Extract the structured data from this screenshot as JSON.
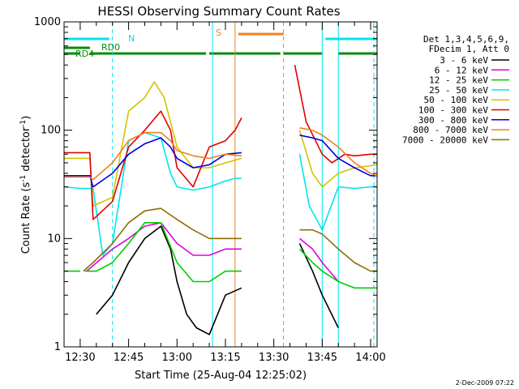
{
  "chart_data": {
    "type": "line",
    "title": "HESSI Observing Summary Count Rates",
    "xlabel": "Start Time (25-Aug-04 12:25:02)",
    "ylabel_prefix": "Count Rate (s",
    "ylabel_sup1": "-1",
    "ylabel_mid": " detector",
    "ylabel_sup2": "-1",
    "ylabel_suffix": ")",
    "yscale": "log",
    "ylim": [
      1,
      1000
    ],
    "xlim": [
      "12:25",
      "14:02"
    ],
    "x_tick_labels": [
      "12:30",
      "12:45",
      "13:00",
      "13:15",
      "13:30",
      "13:45",
      "14:00"
    ],
    "y_tick_labels": [
      "1",
      "10",
      "100",
      "1000"
    ],
    "legend_header": [
      "Det 1,3,4,5,6,9,",
      "FDecim 1, Att 0"
    ],
    "legend_position": "right",
    "timestamp": "2-Dec-2009 07:22",
    "annotations": {
      "N": "N",
      "RD0": "RD0",
      "RD4": "RD4",
      "S": "S"
    },
    "state_bars": [
      {
        "label": "N",
        "color": "#00e5ee",
        "segments": [
          [
            "12:25",
            "12:39"
          ],
          [
            "13:46",
            "14:02"
          ]
        ]
      },
      {
        "label": "RD0",
        "color": "#0a8a0a",
        "segments": [
          [
            "12:25",
            "12:33"
          ]
        ]
      },
      {
        "label": "RD4",
        "color": "#0a8a0a",
        "segments": [
          [
            "12:25",
            "12:30"
          ],
          [
            "12:33",
            "13:09"
          ],
          [
            "13:10",
            "13:32"
          ],
          [
            "13:33",
            "13:45"
          ],
          [
            "13:50",
            "14:02"
          ]
        ]
      },
      {
        "label": "S",
        "color": "#f08020",
        "segments": [
          [
            "13:19",
            "13:33"
          ]
        ]
      }
    ],
    "vertical_markers": [
      {
        "x": "12:40",
        "color": "#00e5ee",
        "dashed": true
      },
      {
        "x": "13:11",
        "color": "#00e5ee",
        "dashed": false
      },
      {
        "x": "13:18",
        "color": "#f08020",
        "dashed": false
      },
      {
        "x": "13:33",
        "color": "#f08020",
        "dashed": true
      },
      {
        "x": "13:45",
        "color": "#00e5ee",
        "dashed": false
      },
      {
        "x": "13:50",
        "color": "#00e5ee",
        "dashed": false
      },
      {
        "x": "14:01",
        "color": "#00e5ee",
        "dashed": true
      }
    ],
    "series": [
      {
        "name": "3 - 6 keV",
        "color": "#000000",
        "points": [
          [
            "12:25",
            null
          ],
          [
            "12:33",
            null
          ],
          [
            "12:35",
            2
          ],
          [
            "12:40",
            3
          ],
          [
            "12:45",
            6
          ],
          [
            "12:50",
            10
          ],
          [
            "12:55",
            13
          ],
          [
            "12:58",
            8
          ],
          [
            "13:00",
            4
          ],
          [
            "13:03",
            2
          ],
          [
            "13:06",
            1.5
          ],
          [
            "13:10",
            1.3
          ],
          [
            "13:15",
            3
          ],
          [
            "13:20",
            3.5
          ],
          [
            "13:20.5",
            null
          ],
          [
            "13:37",
            null
          ],
          [
            "13:38",
            9
          ],
          [
            "13:42",
            5
          ],
          [
            "13:45",
            3
          ],
          [
            "13:50",
            1.5
          ],
          [
            "13:51",
            null
          ]
        ]
      },
      {
        "name": "6 - 12 keV",
        "color": "#e000e0",
        "points": [
          [
            "12:25",
            null
          ],
          [
            "12:31",
            null
          ],
          [
            "12:32",
            5
          ],
          [
            "12:40",
            8
          ],
          [
            "12:45",
            10
          ],
          [
            "12:50",
            13
          ],
          [
            "12:55",
            14
          ],
          [
            "13:00",
            9
          ],
          [
            "13:05",
            7
          ],
          [
            "13:10",
            7
          ],
          [
            "13:15",
            8
          ],
          [
            "13:20",
            8
          ],
          [
            "13:20.5",
            null
          ],
          [
            "13:37",
            null
          ],
          [
            "13:38",
            10
          ],
          [
            "13:42",
            8
          ],
          [
            "13:45",
            6
          ],
          [
            "13:50",
            4
          ],
          [
            "13:52",
            null
          ]
        ]
      },
      {
        "name": "12 - 25 keV",
        "color": "#00cc00",
        "points": [
          [
            "12:25",
            5
          ],
          [
            "12:30",
            5
          ],
          [
            "12:31",
            null
          ],
          [
            "12:31.5",
            5
          ],
          [
            "12:35",
            5
          ],
          [
            "12:40",
            6
          ],
          [
            "12:45",
            9
          ],
          [
            "12:50",
            14
          ],
          [
            "12:55",
            14
          ],
          [
            "13:00",
            6
          ],
          [
            "13:05",
            4
          ],
          [
            "13:10",
            4
          ],
          [
            "13:15",
            5
          ],
          [
            "13:20",
            5
          ],
          [
            "13:20.5",
            null
          ],
          [
            "13:37",
            null
          ],
          [
            "13:38",
            8
          ],
          [
            "13:42",
            6
          ],
          [
            "13:45",
            5
          ],
          [
            "13:50",
            4
          ],
          [
            "13:55",
            3.5
          ],
          [
            "14:02",
            3.5
          ]
        ]
      },
      {
        "name": "25 - 50 keV",
        "color": "#00e5ee",
        "points": [
          [
            "12:25",
            30
          ],
          [
            "12:30",
            29
          ],
          [
            "12:34",
            29
          ],
          [
            "12:37",
            7
          ],
          [
            "12:40",
            9
          ],
          [
            "12:45",
            80
          ],
          [
            "12:50",
            95
          ],
          [
            "12:55",
            85
          ],
          [
            "12:58",
            40
          ],
          [
            "13:00",
            30
          ],
          [
            "13:05",
            28
          ],
          [
            "13:10",
            30
          ],
          [
            "13:15",
            34
          ],
          [
            "13:18",
            36
          ],
          [
            "13:20",
            36
          ],
          [
            "13:20.5",
            null
          ],
          [
            "13:37",
            null
          ],
          [
            "13:38",
            60
          ],
          [
            "13:41",
            20
          ],
          [
            "13:45",
            12
          ],
          [
            "13:50",
            30
          ],
          [
            "13:55",
            29
          ],
          [
            "14:00",
            30
          ],
          [
            "14:02",
            30
          ]
        ]
      },
      {
        "name": "50 - 100 keV",
        "color": "#d4c200",
        "points": [
          [
            "12:25",
            55
          ],
          [
            "12:33",
            55
          ],
          [
            "12:34",
            20
          ],
          [
            "12:40",
            24
          ],
          [
            "12:45",
            150
          ],
          [
            "12:50",
            200
          ],
          [
            "12:53",
            280
          ],
          [
            "12:56",
            200
          ],
          [
            "13:00",
            70
          ],
          [
            "13:05",
            45
          ],
          [
            "13:10",
            45
          ],
          [
            "13:15",
            50
          ],
          [
            "13:20",
            55
          ],
          [
            "13:20.5",
            null
          ],
          [
            "13:37",
            null
          ],
          [
            "13:38",
            100
          ],
          [
            "13:42",
            40
          ],
          [
            "13:45",
            30
          ],
          [
            "13:50",
            40
          ],
          [
            "13:55",
            45
          ],
          [
            "14:00",
            47
          ],
          [
            "14:02",
            48
          ]
        ]
      },
      {
        "name": "100 - 300 keV",
        "color": "#e00000",
        "points": [
          [
            "12:25",
            62
          ],
          [
            "12:33",
            62
          ],
          [
            "12:34",
            15
          ],
          [
            "12:40",
            22
          ],
          [
            "12:45",
            70
          ],
          [
            "12:50",
            100
          ],
          [
            "12:55",
            150
          ],
          [
            "12:58",
            100
          ],
          [
            "13:00",
            45
          ],
          [
            "13:05",
            30
          ],
          [
            "13:10",
            70
          ],
          [
            "13:15",
            80
          ],
          [
            "13:18",
            100
          ],
          [
            "13:20",
            130
          ],
          [
            "13:20.5",
            null
          ],
          [
            "13:36",
            null
          ],
          [
            "13:36.5",
            400
          ],
          [
            "13:40",
            120
          ],
          [
            "13:45",
            60
          ],
          [
            "13:48",
            50
          ],
          [
            "13:52",
            60
          ],
          [
            "13:55",
            58
          ],
          [
            "14:00",
            60
          ],
          [
            "14:02",
            60
          ]
        ]
      },
      {
        "name": "300 - 800 keV",
        "color": "#0000e0",
        "points": [
          [
            "12:25",
            38
          ],
          [
            "12:33",
            38
          ],
          [
            "12:34",
            30
          ],
          [
            "12:40",
            40
          ],
          [
            "12:45",
            60
          ],
          [
            "12:50",
            75
          ],
          [
            "12:55",
            85
          ],
          [
            "12:58",
            70
          ],
          [
            "13:00",
            55
          ],
          [
            "13:05",
            45
          ],
          [
            "13:10",
            48
          ],
          [
            "13:15",
            60
          ],
          [
            "13:20",
            62
          ],
          [
            "13:20.5",
            null
          ],
          [
            "13:37",
            null
          ],
          [
            "13:38",
            90
          ],
          [
            "13:42",
            85
          ],
          [
            "13:45",
            80
          ],
          [
            "13:50",
            55
          ],
          [
            "13:55",
            45
          ],
          [
            "14:00",
            38
          ],
          [
            "14:02",
            38
          ]
        ]
      },
      {
        "name": "800 - 7000 keV",
        "color": "#f08020",
        "points": [
          [
            "12:25",
            37
          ],
          [
            "12:33",
            37
          ],
          [
            "12:34",
            35
          ],
          [
            "12:40",
            50
          ],
          [
            "12:45",
            80
          ],
          [
            "12:50",
            95
          ],
          [
            "12:55",
            95
          ],
          [
            "12:58",
            80
          ],
          [
            "13:00",
            65
          ],
          [
            "13:05",
            58
          ],
          [
            "13:10",
            55
          ],
          [
            "13:15",
            60
          ],
          [
            "13:20",
            58
          ],
          [
            "13:20.5",
            null
          ],
          [
            "13:37",
            null
          ],
          [
            "13:38",
            105
          ],
          [
            "13:42",
            100
          ],
          [
            "13:45",
            90
          ],
          [
            "13:50",
            70
          ],
          [
            "13:55",
            50
          ],
          [
            "14:00",
            40
          ],
          [
            "14:02",
            38
          ]
        ]
      },
      {
        "name": "7000 - 20000 keV",
        "color": "#8b7000",
        "points": [
          [
            "12:25",
            null
          ],
          [
            "12:30",
            null
          ],
          [
            "12:31",
            5
          ],
          [
            "12:34",
            6
          ],
          [
            "12:40",
            9
          ],
          [
            "12:45",
            14
          ],
          [
            "12:50",
            18
          ],
          [
            "12:55",
            19
          ],
          [
            "13:00",
            15
          ],
          [
            "13:05",
            12
          ],
          [
            "13:10",
            10
          ],
          [
            "13:15",
            10
          ],
          [
            "13:20",
            10
          ],
          [
            "13:20.5",
            null
          ],
          [
            "13:37",
            null
          ],
          [
            "13:38",
            12
          ],
          [
            "13:42",
            12
          ],
          [
            "13:45",
            11
          ],
          [
            "13:50",
            8
          ],
          [
            "13:55",
            6
          ],
          [
            "14:00",
            5
          ],
          [
            "14:02",
            5
          ]
        ]
      }
    ]
  }
}
